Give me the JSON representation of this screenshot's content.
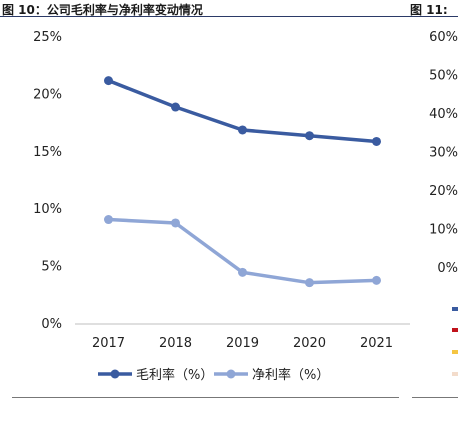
{
  "header": {
    "left_title": "图 10：公司毛利率与净利率变动情况",
    "right_title": "图 11:"
  },
  "chart_data": [
    {
      "type": "line",
      "title": "公司毛利率与净利率变动情况",
      "categories": [
        "2017",
        "2018",
        "2019",
        "2020",
        "2021"
      ],
      "y_ticks": [
        "0%",
        "5%",
        "10%",
        "15%",
        "20%",
        "25%"
      ],
      "ylim": [
        0,
        25
      ],
      "grid": false,
      "legend_position": "bottom",
      "series": [
        {
          "name": "毛利率（%）",
          "values": [
            21.2,
            18.9,
            16.9,
            16.4,
            15.9
          ],
          "color": "#3a5ba0"
        },
        {
          "name": "净利率（%）",
          "values": [
            9.1,
            8.8,
            4.5,
            3.6,
            3.8
          ],
          "color": "#8fa6d6"
        }
      ]
    },
    {
      "type": "line",
      "y_ticks": [
        "0%",
        "10%",
        "20%",
        "30%",
        "40%",
        "50%",
        "60%"
      ],
      "ylim": [
        0,
        60
      ],
      "legend_colors": [
        "#3a5ba0",
        "#c0121b",
        "#f5c542",
        "#f3dccb"
      ]
    }
  ]
}
